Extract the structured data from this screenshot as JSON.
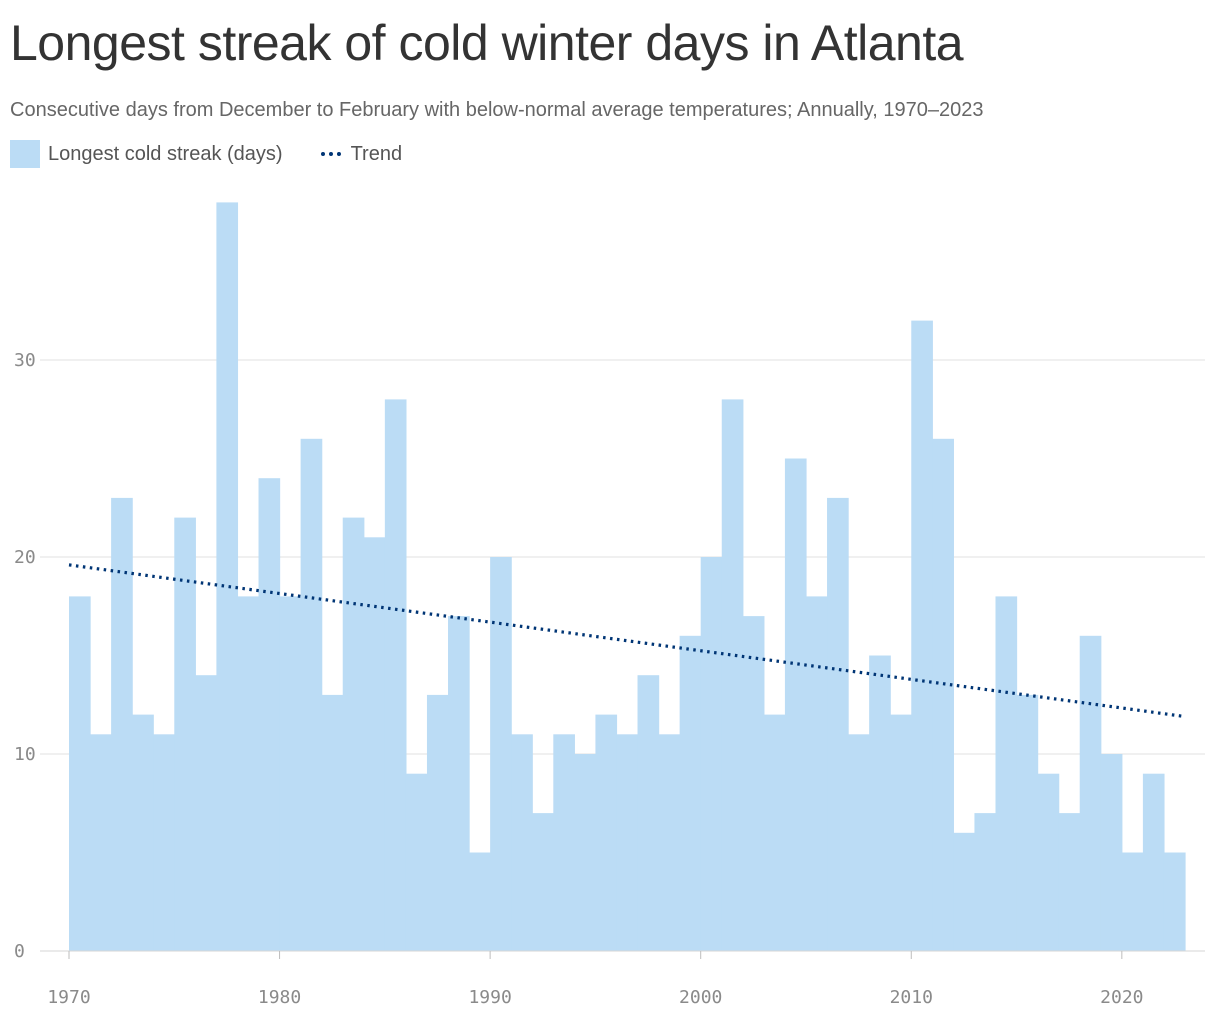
{
  "title": "Longest streak of cold winter days in Atlanta",
  "subtitle": "Consecutive days from December to February with below-normal average temperatures; Annually, 1970–2023",
  "legend": {
    "bars_label": "Longest cold streak (days)",
    "trend_label": "Trend"
  },
  "colors": {
    "bar": "#bbdcf5",
    "trend": "#003575",
    "grid": "#e0e0e0",
    "axis_text": "#8a8a8a"
  },
  "chart_data": {
    "type": "bar",
    "title": "Longest streak of cold winter days in Atlanta",
    "x_tick_labels": [
      "1970",
      "1980",
      "1990",
      "2000",
      "2010",
      "2020"
    ],
    "y_tick_labels": [
      "0",
      "10",
      "20",
      "30"
    ],
    "ylim": [
      0,
      38
    ],
    "xlim": [
      1970,
      2023
    ],
    "grid": true,
    "legend_placement": "top-left",
    "series": [
      {
        "name": "Longest cold streak (days)",
        "x": [
          1971,
          1972,
          1973,
          1974,
          1975,
          1976,
          1977,
          1978,
          1979,
          1980,
          1981,
          1982,
          1983,
          1984,
          1985,
          1986,
          1987,
          1988,
          1989,
          1990,
          1991,
          1992,
          1993,
          1994,
          1995,
          1996,
          1997,
          1998,
          1999,
          2000,
          2001,
          2002,
          2003,
          2004,
          2005,
          2006,
          2007,
          2008,
          2009,
          2010,
          2011,
          2012,
          2013,
          2014,
          2015,
          2016,
          2017,
          2018,
          2019,
          2020,
          2021,
          2022,
          2023
        ],
        "values": [
          18,
          11,
          23,
          12,
          11,
          22,
          14,
          38,
          18,
          24,
          18,
          26,
          13,
          22,
          21,
          28,
          9,
          13,
          17,
          5,
          20,
          11,
          7,
          11,
          10,
          12,
          11,
          14,
          11,
          16,
          20,
          28,
          17,
          12,
          25,
          18,
          23,
          11,
          15,
          12,
          32,
          26,
          6,
          7,
          18,
          13,
          9,
          7,
          16,
          10,
          5,
          9,
          5
        ]
      },
      {
        "name": "Trend",
        "type": "line",
        "x": [
          1970,
          2023
        ],
        "values": [
          19.6,
          11.9
        ]
      }
    ]
  }
}
